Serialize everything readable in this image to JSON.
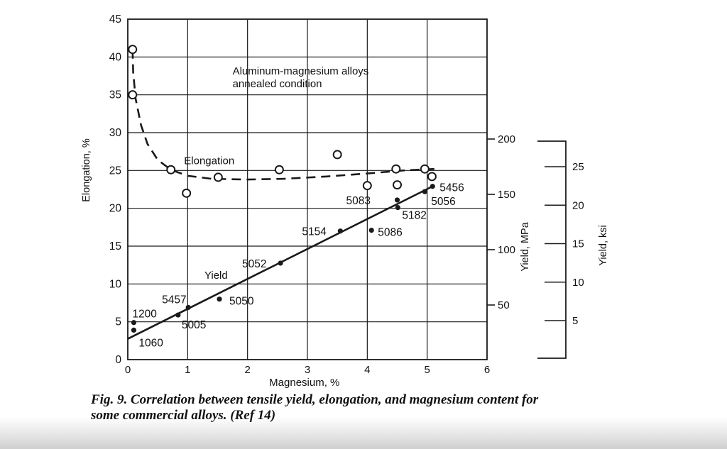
{
  "caption": {
    "line1": "Fig. 9. Correlation between tensile yield, elongation, and magnesium content for",
    "line2": "some commercial alloys. (Ref 14)"
  },
  "chart_data": {
    "type": "scatter",
    "annotation": [
      "Aluminum-magnesium alloys",
      "annealed condition"
    ],
    "annotation_at": [
      1.75,
      37.7
    ],
    "x_axis": {
      "label": "Magnesium, %",
      "min": 0,
      "max": 6,
      "ticks": [
        0,
        1,
        2,
        3,
        4,
        5,
        6
      ],
      "grid": true
    },
    "y_left_axis": {
      "label": "Elongation, %",
      "min": 0,
      "max": 45,
      "ticks": [
        0,
        5,
        10,
        15,
        20,
        25,
        30,
        35,
        40,
        45
      ],
      "grid": true
    },
    "y_right_mpa_axis": {
      "label": "Yield, MPa",
      "ticks": [
        50,
        100,
        150,
        200
      ]
    },
    "y_right_ksi_axis": {
      "label": "Yield, ksi",
      "ticks": [
        5,
        10,
        15,
        20,
        25
      ]
    },
    "series": [
      {
        "name": "Elongation",
        "style": "dashed-line-open-circles",
        "label_at": [
          0.94,
          25.85
        ],
        "points": [
          [
            0.08,
            41.0
          ],
          [
            0.08,
            35.0
          ],
          [
            0.72,
            25.1
          ],
          [
            0.98,
            22.0
          ],
          [
            1.51,
            24.1
          ],
          [
            2.53,
            25.1
          ],
          [
            3.5,
            27.1
          ],
          [
            4.0,
            23.0
          ],
          [
            4.48,
            25.2
          ],
          [
            4.5,
            23.1
          ],
          [
            4.96,
            25.2
          ],
          [
            5.08,
            24.2
          ]
        ],
        "curve": [
          [
            0.08,
            41.0
          ],
          [
            0.09,
            38.0
          ],
          [
            0.13,
            34.5
          ],
          [
            0.22,
            31.0
          ],
          [
            0.33,
            28.5
          ],
          [
            0.5,
            26.4
          ],
          [
            0.72,
            25.1
          ],
          [
            1.0,
            24.3
          ],
          [
            1.4,
            23.9
          ],
          [
            2.0,
            23.8
          ],
          [
            2.6,
            23.9
          ],
          [
            3.3,
            24.2
          ],
          [
            4.0,
            24.6
          ],
          [
            4.6,
            25.0
          ],
          [
            5.12,
            25.2
          ]
        ]
      },
      {
        "name": "Yield",
        "style": "solid-line-filled-dots",
        "label_at": [
          1.28,
          10.7
        ],
        "trend_line": [
          [
            0.0,
            2.75
          ],
          [
            5.09,
            22.9
          ]
        ],
        "points": [
          {
            "alloy": "1060",
            "mg": 0.1,
            "yield_mpa": 27,
            "axis_value": 3.9,
            "label_dx": 7,
            "label_dy": 23
          },
          {
            "alloy": "1200",
            "mg": 0.1,
            "yield_mpa": 33,
            "axis_value": 4.9,
            "label_dx": -2,
            "label_dy": -7
          },
          {
            "alloy": "5005",
            "mg": 0.84,
            "yield_mpa": 40,
            "axis_value": 5.9,
            "label_dx": 5,
            "label_dy": 19
          },
          {
            "alloy": "5457",
            "mg": 1.01,
            "yield_mpa": 47,
            "axis_value": 6.9,
            "label_dx": -37,
            "label_dy": -6
          },
          {
            "alloy": "5050",
            "mg": 1.53,
            "yield_mpa": 55,
            "axis_value": 8.0,
            "label_dx": 14,
            "label_dy": 8
          },
          {
            "alloy": "5052",
            "mg": 2.55,
            "yield_mpa": 87,
            "axis_value": 12.75,
            "label_dx": -54,
            "label_dy": 6
          },
          {
            "alloy": "5154",
            "mg": 3.55,
            "yield_mpa": 116,
            "axis_value": 17.0,
            "label_dx": -54,
            "label_dy": 6
          },
          {
            "alloy": "5086",
            "mg": 4.07,
            "yield_mpa": 117,
            "axis_value": 17.1,
            "label_dx": 9,
            "label_dy": 8
          },
          {
            "alloy": "5083",
            "mg": 4.5,
            "yield_mpa": 144,
            "axis_value": 21.1,
            "label_dx": -72,
            "label_dy": 6
          },
          {
            "alloy": "5182",
            "mg": 4.51,
            "yield_mpa": 137,
            "axis_value": 20.1,
            "label_dx": 6,
            "label_dy": 16
          },
          {
            "alloy": "5056",
            "mg": 4.96,
            "yield_mpa": 152,
            "axis_value": 22.2,
            "label_dx": 9,
            "label_dy": 19
          },
          {
            "alloy": "5456",
            "mg": 5.09,
            "yield_mpa": 156,
            "axis_value": 22.9,
            "label_dx": 10,
            "label_dy": 7
          }
        ]
      }
    ]
  }
}
